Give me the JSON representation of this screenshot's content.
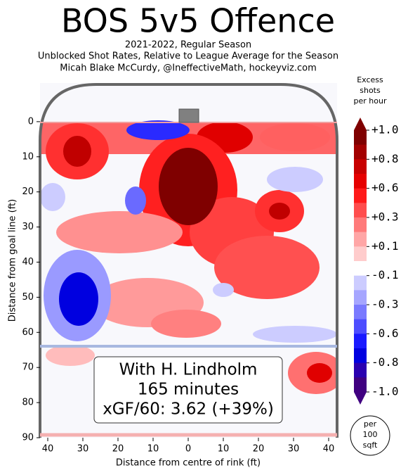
{
  "chart_data": {
    "type": "contour",
    "title": "BOS 5v5 Offence",
    "subtitle": [
      "2021-2022, Regular Season",
      "Unblocked Shot Rates, Relative to League Average for the Season",
      "Micah Blake McCurdy, @IneffectiveMath, hockeyviz.com"
    ],
    "xlabel": "Distance from centre of rink (ft)",
    "ylabel": "Distance from goal line (ft)",
    "xlim": [
      -42.5,
      42.5
    ],
    "xticks": [
      {
        "value": -40,
        "label": "40"
      },
      {
        "value": -30,
        "label": "30"
      },
      {
        "value": -20,
        "label": "20"
      },
      {
        "value": -10,
        "label": "10"
      },
      0,
      10,
      20,
      30,
      40
    ],
    "ylim": [
      90,
      -11
    ],
    "yticks": [
      0,
      10,
      20,
      30,
      40,
      50,
      60,
      70,
      80,
      90
    ],
    "colorbar_title": [
      "Excess",
      "shots",
      "per hour"
    ],
    "colorbar_ticks": [
      {
        "value": 1.0,
        "label": "+1.0"
      },
      {
        "value": 0.8,
        "label": "+0.8"
      },
      {
        "value": 0.6,
        "label": "+0.6"
      },
      {
        "value": 0.3,
        "label": "+0.3"
      },
      {
        "value": 0.1,
        "label": "+0.1"
      },
      -0.1,
      -0.3,
      -0.6,
      -0.8,
      {
        "value": -1.0,
        "label": "-1.0"
      }
    ],
    "colorbar_colors": [
      "#7f0000",
      "#a30000",
      "#c80000",
      "#e60000",
      "#ff1a1a",
      "#ff4d4d",
      "#ff7a7a",
      "#ffa6a6",
      "#ffcccc",
      "#ffffff",
      "#ccccff",
      "#a6a6ff",
      "#7a7aff",
      "#4d4dff",
      "#1a1aff",
      "#0000e0",
      "#2a00b0",
      "#400080"
    ],
    "annotation": [
      "With H. Lindholm",
      "165 minutes",
      "xGF/60: 3.62 (+39%)"
    ],
    "unit_badge": [
      "per",
      "100",
      "sqft"
    ]
  }
}
